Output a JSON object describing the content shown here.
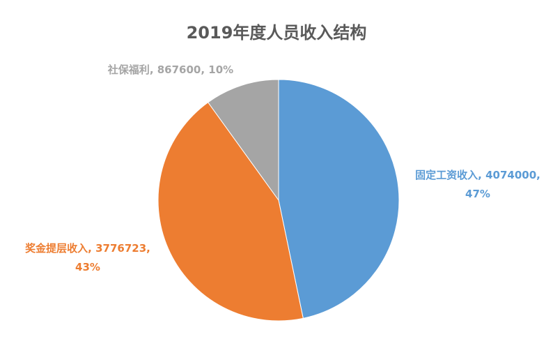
{
  "chart_data": {
    "type": "pie",
    "title": "2019年度人员收入结构",
    "categories": [
      "固定工资收入",
      "奖金提层收入",
      "社保福利"
    ],
    "values": [
      4074000,
      3776723,
      867600
    ],
    "percent_labels": [
      "47%",
      "43%",
      "10%"
    ],
    "label_separator": ", ",
    "colors": [
      "#5b9bd5",
      "#ed7d31",
      "#a5a5a5"
    ]
  }
}
